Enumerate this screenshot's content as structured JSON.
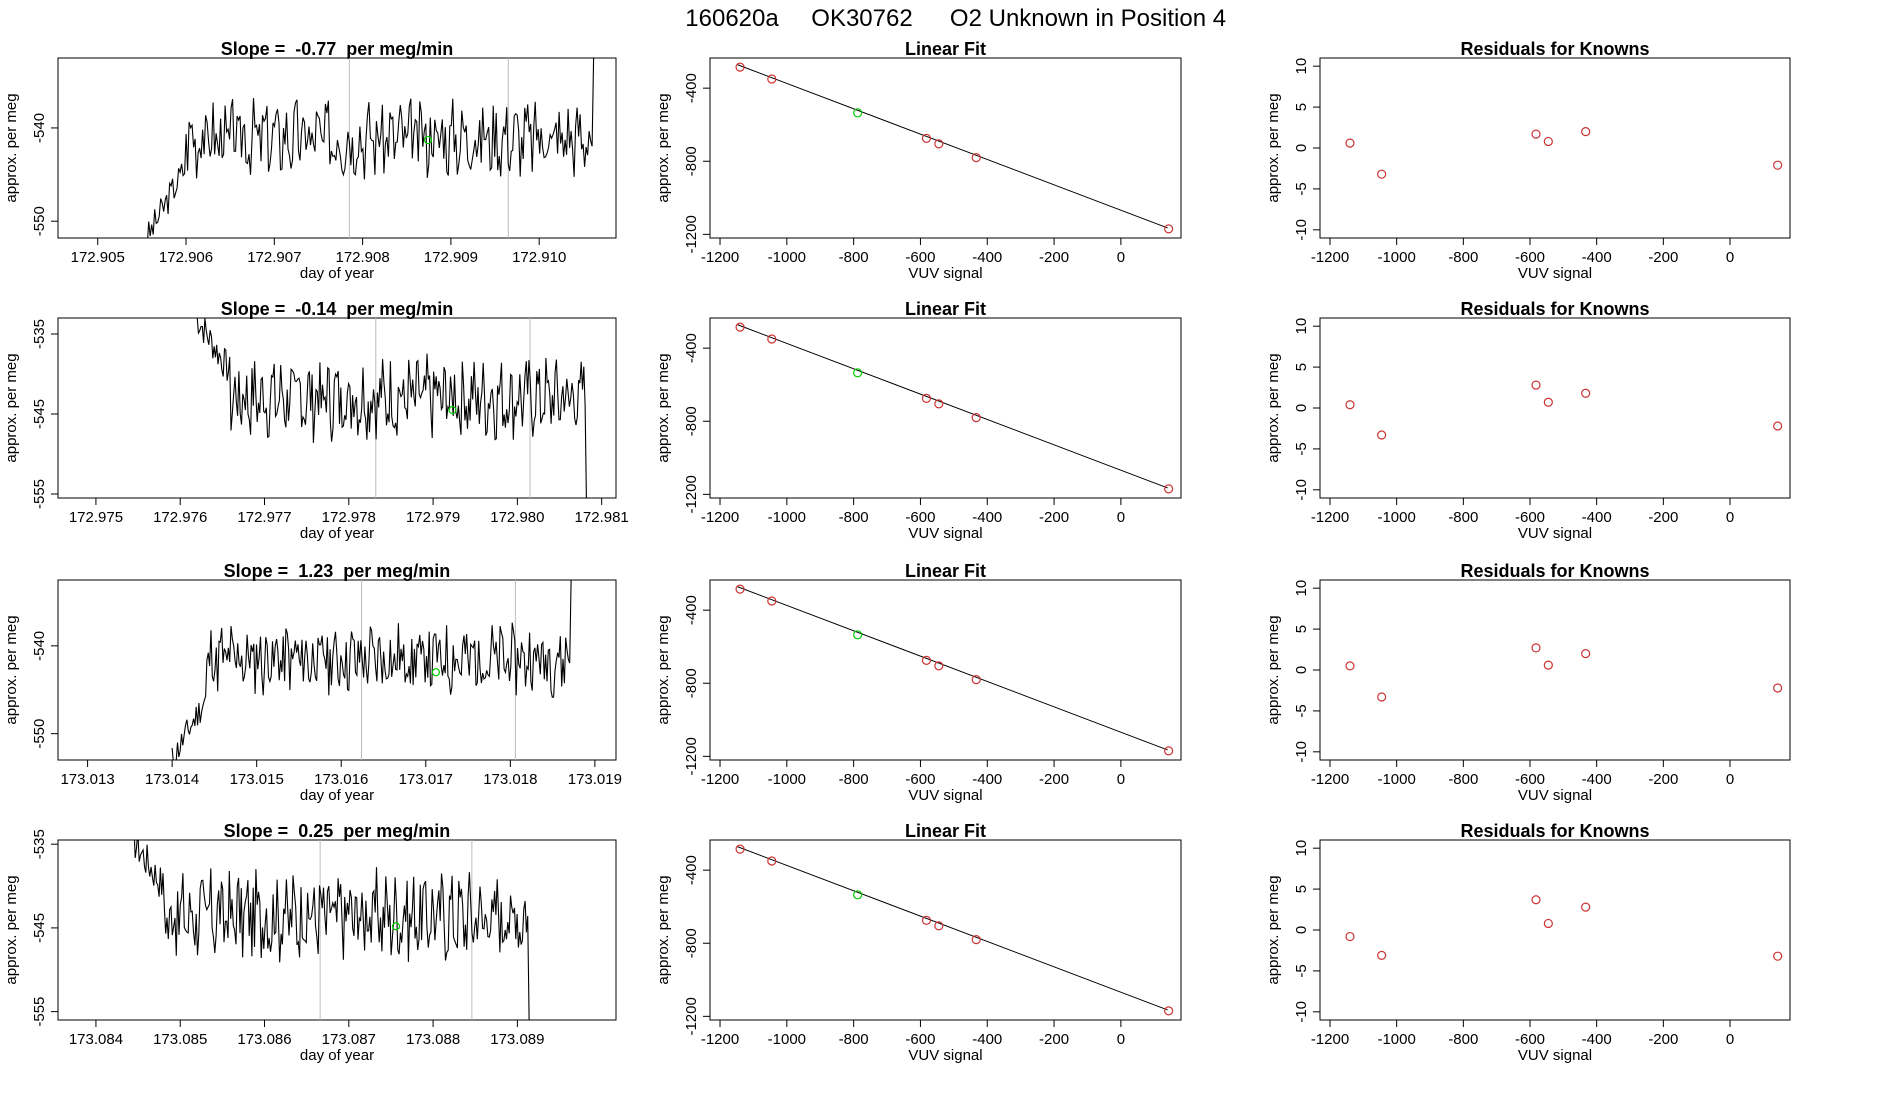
{
  "figure": {
    "sample_id": "160620a",
    "tank_id": "OK30762",
    "description": "O2 Unknown in Position  4"
  },
  "colors": {
    "trace": "#000000",
    "unknown_point": "#00cc00",
    "known_point": "#cc3333",
    "marker_line": "#bbbbbb"
  },
  "chart_data": [
    {
      "type": "line",
      "row": 1,
      "panel": "time-series",
      "title_prefix": "Slope =",
      "slope": "-0.77",
      "title_suffix": "per meg/min",
      "xlabel": "day of year",
      "ylabel": "approx. per meg",
      "xlim": [
        172.90455,
        172.91087
      ],
      "ylim": [
        -551.8,
        -532.5
      ],
      "xticks": [
        "172.905",
        "172.906",
        "172.907",
        "172.908",
        "172.909",
        "172.910"
      ],
      "yticks": [
        "-550",
        "-540"
      ],
      "markers_x": [
        172.90785,
        172.90965
      ],
      "point": {
        "x": 172.90874,
        "y": -541.3
      },
      "trace": {
        "start": 172.90556,
        "end": 172.91065,
        "level": -541.0,
        "amp": 3.4,
        "seed": 3,
        "startY": -551.8,
        "riseTo": -544.0,
        "riseEnd": 172.906,
        "endY": -532.5
      }
    },
    {
      "type": "scatter",
      "row": 1,
      "panel": "fit",
      "title": "Linear Fit",
      "xlabel": "VUV signal",
      "ylabel": "approx. per meg",
      "xlim": [
        -1230,
        180
      ],
      "ylim": [
        -1220,
        -235
      ],
      "xticks": [
        "-1200",
        "-1000",
        "-800",
        "-600",
        "-400",
        "-200",
        "0"
      ],
      "yticks": [
        "-400",
        "-800",
        "-1200"
      ],
      "line": {
        "x": [
          -1150,
          140
        ],
        "y": [
          -270,
          -1165
        ]
      },
      "knowns": {
        "x": [
          -1140,
          -1045,
          -582,
          -545,
          -433,
          143
        ],
        "y": [
          -285,
          -350,
          -675,
          -705,
          -780,
          -1170
        ]
      },
      "unknown": {
        "x": [
          -788
        ],
        "y": [
          -535
        ]
      }
    },
    {
      "type": "scatter",
      "row": 1,
      "panel": "residuals",
      "title": "Residuals for Knowns",
      "xlabel": "VUV signal",
      "ylabel": "approx. per meg",
      "xlim": [
        -1230,
        180
      ],
      "ylim": [
        -11,
        11
      ],
      "xticks": [
        "-1200",
        "-1000",
        "-800",
        "-600",
        "-400",
        "-200",
        "0"
      ],
      "yticks": [
        "10",
        "5",
        "0",
        "-5",
        "-10"
      ],
      "residuals": {
        "x": [
          -1140,
          -1045,
          -582,
          -545,
          -433,
          143
        ],
        "y": [
          0.6,
          -3.2,
          1.7,
          0.8,
          2.0,
          -2.1
        ]
      }
    },
    {
      "type": "line",
      "row": 2,
      "panel": "time-series",
      "title_prefix": "Slope =",
      "slope": "-0.14",
      "title_suffix": "per meg/min",
      "xlabel": "day of year",
      "ylabel": "approx. per meg",
      "xlim": [
        172.97455,
        172.98117
      ],
      "ylim": [
        -555.5,
        -533.0
      ],
      "xticks": [
        "172.975",
        "172.976",
        "172.977",
        "172.978",
        "172.979",
        "172.980",
        "172.981"
      ],
      "yticks": [
        "-535",
        "-545",
        "-555"
      ],
      "markers_x": [
        172.97832,
        172.98015
      ],
      "point": {
        "x": 172.97923,
        "y": -544.5
      },
      "trace": {
        "start": 172.9762,
        "end": 172.98085,
        "level": -543.0,
        "amp": 4.2,
        "seed": 7,
        "startY": -533.0,
        "riseTo": -540.0,
        "riseEnd": 172.9766,
        "endY": -555.5
      }
    },
    {
      "type": "scatter",
      "row": 2,
      "panel": "fit",
      "title": "Linear Fit",
      "xlabel": "VUV signal",
      "ylabel": "approx. per meg",
      "xlim": [
        -1230,
        180
      ],
      "ylim": [
        -1220,
        -235
      ],
      "xticks": [
        "-1200",
        "-1000",
        "-800",
        "-600",
        "-400",
        "-200",
        "0"
      ],
      "yticks": [
        "-400",
        "-800",
        "-1200"
      ],
      "line": {
        "x": [
          -1150,
          140
        ],
        "y": [
          -270,
          -1165
        ]
      },
      "knowns": {
        "x": [
          -1140,
          -1045,
          -582,
          -545,
          -433,
          143
        ],
        "y": [
          -285,
          -350,
          -675,
          -705,
          -780,
          -1170
        ]
      },
      "unknown": {
        "x": [
          -788
        ],
        "y": [
          -535
        ]
      }
    },
    {
      "type": "scatter",
      "row": 2,
      "panel": "residuals",
      "title": "Residuals for Knowns",
      "xlabel": "VUV signal",
      "ylabel": "approx. per meg",
      "xlim": [
        -1230,
        180
      ],
      "ylim": [
        -11,
        11
      ],
      "xticks": [
        "-1200",
        "-1000",
        "-800",
        "-600",
        "-400",
        "-200",
        "0"
      ],
      "yticks": [
        "10",
        "5",
        "0",
        "-5",
        "-10"
      ],
      "residuals": {
        "x": [
          -1140,
          -1045,
          -582,
          -545,
          -433,
          143
        ],
        "y": [
          0.4,
          -3.3,
          2.8,
          0.7,
          1.8,
          -2.2
        ]
      }
    },
    {
      "type": "line",
      "row": 3,
      "panel": "time-series",
      "title_prefix": "Slope =",
      "slope": "1.23",
      "title_suffix": "per meg/min",
      "xlabel": "day of year",
      "ylabel": "approx. per meg",
      "xlim": [
        173.01265,
        173.01925
      ],
      "ylim": [
        -553.0,
        -532.5
      ],
      "xticks": [
        "173.013",
        "173.014",
        "173.015",
        "173.016",
        "173.017",
        "173.018",
        "173.019"
      ],
      "yticks": [
        "-550",
        "-540"
      ],
      "markers_x": [
        173.01624,
        173.01806
      ],
      "point": {
        "x": 173.01712,
        "y": -543.0
      },
      "trace": {
        "start": 173.014,
        "end": 173.01875,
        "level": -541.5,
        "amp": 3.4,
        "seed": 11,
        "startY": -553.0,
        "riseTo": -546.0,
        "riseEnd": 173.0144,
        "endY": -532.5
      }
    },
    {
      "type": "scatter",
      "row": 3,
      "panel": "fit",
      "title": "Linear Fit",
      "xlabel": "VUV signal",
      "ylabel": "approx. per meg",
      "xlim": [
        -1230,
        180
      ],
      "ylim": [
        -1220,
        -235
      ],
      "xticks": [
        "-1200",
        "-1000",
        "-800",
        "-600",
        "-400",
        "-200",
        "0"
      ],
      "yticks": [
        "-400",
        "-800",
        "-1200"
      ],
      "line": {
        "x": [
          -1150,
          140
        ],
        "y": [
          -270,
          -1165
        ]
      },
      "knowns": {
        "x": [
          -1140,
          -1045,
          -582,
          -545,
          -433,
          143
        ],
        "y": [
          -285,
          -350,
          -675,
          -705,
          -780,
          -1170
        ]
      },
      "unknown": {
        "x": [
          -788
        ],
        "y": [
          -535
        ]
      }
    },
    {
      "type": "scatter",
      "row": 3,
      "panel": "residuals",
      "title": "Residuals for Knowns",
      "xlabel": "VUV signal",
      "ylabel": "approx. per meg",
      "xlim": [
        -1230,
        180
      ],
      "ylim": [
        -11,
        11
      ],
      "xticks": [
        "-1200",
        "-1000",
        "-800",
        "-600",
        "-400",
        "-200",
        "0"
      ],
      "yticks": [
        "10",
        "5",
        "0",
        "-5",
        "-10"
      ],
      "residuals": {
        "x": [
          -1140,
          -1045,
          -582,
          -545,
          -433,
          143
        ],
        "y": [
          0.5,
          -3.3,
          2.7,
          0.6,
          2.0,
          -2.2
        ]
      }
    },
    {
      "type": "line",
      "row": 4,
      "panel": "time-series",
      "title_prefix": "Slope =",
      "slope": "0.25",
      "title_suffix": "per meg/min",
      "xlabel": "day of year",
      "ylabel": "approx. per meg",
      "xlim": [
        173.08355,
        173.09017
      ],
      "ylim": [
        -556.0,
        -534.5
      ],
      "xticks": [
        "173.084",
        "173.085",
        "173.086",
        "173.087",
        "173.088",
        "173.089"
      ],
      "yticks": [
        "-535",
        "-545",
        "-555"
      ],
      "markers_x": [
        173.08666,
        173.08846
      ],
      "point": {
        "x": 173.08756,
        "y": -544.8
      },
      "trace": {
        "start": 173.08445,
        "end": 173.08917,
        "level": -543.5,
        "amp": 4.4,
        "seed": 17,
        "startY": -534.5,
        "riseTo": -540.0,
        "riseEnd": 173.0848,
        "endY": -556.0
      }
    },
    {
      "type": "scatter",
      "row": 4,
      "panel": "fit",
      "title": "Linear Fit",
      "xlabel": "VUV signal",
      "ylabel": "approx. per meg",
      "xlim": [
        -1230,
        180
      ],
      "ylim": [
        -1220,
        -235
      ],
      "xticks": [
        "-1200",
        "-1000",
        "-800",
        "-600",
        "-400",
        "-200",
        "0"
      ],
      "yticks": [
        "-400",
        "-800",
        "-1200"
      ],
      "line": {
        "x": [
          -1150,
          140
        ],
        "y": [
          -270,
          -1165
        ]
      },
      "knowns": {
        "x": [
          -1140,
          -1045,
          -582,
          -545,
          -433,
          143
        ],
        "y": [
          -285,
          -350,
          -675,
          -705,
          -780,
          -1170
        ]
      },
      "unknown": {
        "x": [
          -788
        ],
        "y": [
          -535
        ]
      }
    },
    {
      "type": "scatter",
      "row": 4,
      "panel": "residuals",
      "title": "Residuals for Knowns",
      "xlabel": "VUV signal",
      "ylabel": "approx. per meg",
      "xlim": [
        -1230,
        180
      ],
      "ylim": [
        -11,
        11
      ],
      "xticks": [
        "-1200",
        "-1000",
        "-800",
        "-600",
        "-400",
        "-200",
        "0"
      ],
      "yticks": [
        "10",
        "5",
        "0",
        "-5",
        "-10"
      ],
      "residuals": {
        "x": [
          -1140,
          -1045,
          -582,
          -545,
          -433,
          143
        ],
        "y": [
          -0.8,
          -3.1,
          3.7,
          0.8,
          2.8,
          -3.2
        ]
      }
    }
  ]
}
